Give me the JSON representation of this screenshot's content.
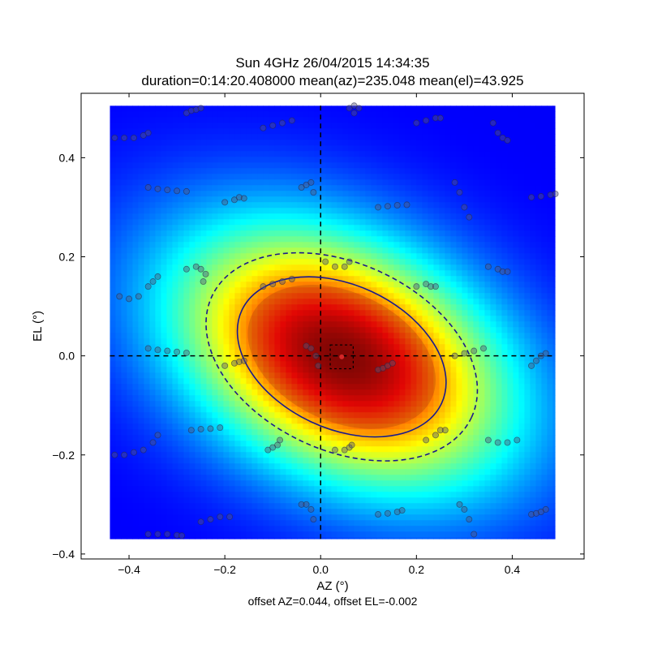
{
  "chart_data": {
    "type": "heatmap",
    "title_line1": "Sun 4GHz 26/04/2015 14:34:35",
    "title_line2": "duration=0:14:20.408000 mean(az)=235.048 mean(el)=43.925",
    "xlabel": "AZ (°)",
    "ylabel": "EL (°)",
    "footer": "offset AZ=0.044, offset EL=-0.002",
    "xlim": [
      -0.5,
      0.55
    ],
    "ylim": [
      -0.41,
      0.53
    ],
    "xticks": [
      -0.4,
      -0.2,
      0.0,
      0.2,
      0.4
    ],
    "xtick_labels": [
      "−0.4",
      "−0.2",
      "0.0",
      "0.2",
      "0.4"
    ],
    "yticks": [
      -0.4,
      -0.2,
      0.0,
      0.2,
      0.4
    ],
    "ytick_labels": [
      "−0.4",
      "−0.2",
      "0.0",
      "0.2",
      "0.4"
    ],
    "colormap": "jet",
    "heatmap_extent": {
      "az": [
        -0.44,
        0.49
      ],
      "el": [
        -0.37,
        0.505
      ]
    },
    "beam_model": {
      "center_az": 0.044,
      "center_el": -0.002,
      "semi_axis_az": 0.23,
      "semi_axis_el": 0.145,
      "tilt_deg": 25,
      "halfpower_contour_scale": 1.0,
      "outer_contour_scale": 1.3
    },
    "crosshair": {
      "az": 0.0,
      "el": 0.0,
      "style": "dashed"
    },
    "offset_marker": {
      "az": 0.044,
      "el": -0.002,
      "color": "#d62728",
      "box_halfsize": 0.024
    },
    "contour_color": "#1a1a8c",
    "scan_track_angles_deg": [
      -18,
      25,
      62,
      5,
      -40,
      10,
      30,
      -60,
      15,
      -25
    ],
    "scan_points": [
      [
        -0.43,
        0.44
      ],
      [
        -0.41,
        0.44
      ],
      [
        -0.39,
        0.44
      ],
      [
        -0.37,
        0.445
      ],
      [
        -0.36,
        0.45
      ],
      [
        -0.42,
        0.12
      ],
      [
        -0.4,
        0.115
      ],
      [
        -0.38,
        0.12
      ],
      [
        -0.36,
        0.14
      ],
      [
        -0.35,
        0.15
      ],
      [
        -0.34,
        0.16
      ],
      [
        -0.36,
        0.015
      ],
      [
        -0.34,
        0.012
      ],
      [
        -0.32,
        0.01
      ],
      [
        -0.3,
        0.008
      ],
      [
        -0.28,
        0.006
      ],
      [
        -0.43,
        -0.2
      ],
      [
        -0.41,
        -0.2
      ],
      [
        -0.39,
        -0.195
      ],
      [
        -0.37,
        -0.19
      ],
      [
        -0.35,
        -0.175
      ],
      [
        -0.34,
        -0.16
      ],
      [
        -0.36,
        -0.36
      ],
      [
        -0.34,
        -0.36
      ],
      [
        -0.32,
        -0.36
      ],
      [
        -0.3,
        -0.362
      ],
      [
        -0.29,
        -0.363
      ],
      [
        -0.36,
        0.34
      ],
      [
        -0.34,
        0.337
      ],
      [
        -0.32,
        0.335
      ],
      [
        -0.3,
        0.333
      ],
      [
        -0.28,
        0.332
      ],
      [
        -0.28,
        0.49
      ],
      [
        -0.27,
        0.495
      ],
      [
        -0.26,
        0.497
      ],
      [
        -0.25,
        0.5
      ],
      [
        -0.28,
        0.175
      ],
      [
        -0.26,
        0.18
      ],
      [
        -0.25,
        0.175
      ],
      [
        -0.24,
        0.165
      ],
      [
        -0.245,
        0.15
      ],
      [
        -0.27,
        -0.15
      ],
      [
        -0.25,
        -0.148
      ],
      [
        -0.23,
        -0.147
      ],
      [
        -0.21,
        -0.145
      ],
      [
        -0.25,
        -0.335
      ],
      [
        -0.23,
        -0.33
      ],
      [
        -0.21,
        -0.325
      ],
      [
        -0.19,
        -0.325
      ],
      [
        -0.2,
        0.31
      ],
      [
        -0.18,
        0.315
      ],
      [
        -0.17,
        0.32
      ],
      [
        -0.16,
        0.318
      ],
      [
        -0.2,
        -0.02
      ],
      [
        -0.18,
        -0.015
      ],
      [
        -0.17,
        -0.012
      ],
      [
        -0.16,
        -0.01
      ],
      [
        -0.12,
        0.46
      ],
      [
        -0.1,
        0.465
      ],
      [
        -0.08,
        0.47
      ],
      [
        -0.06,
        0.475
      ],
      [
        -0.12,
        0.14
      ],
      [
        -0.1,
        0.145
      ],
      [
        -0.08,
        0.15
      ],
      [
        -0.06,
        0.155
      ],
      [
        -0.11,
        -0.19
      ],
      [
        -0.1,
        -0.185
      ],
      [
        -0.09,
        -0.18
      ],
      [
        -0.085,
        -0.17
      ],
      [
        -0.04,
        0.34
      ],
      [
        -0.03,
        0.345
      ],
      [
        -0.02,
        0.35
      ],
      [
        -0.015,
        0.33
      ],
      [
        -0.03,
        0.02
      ],
      [
        -0.02,
        0.015
      ],
      [
        -0.01,
        0.0
      ],
      [
        -0.005,
        -0.02
      ],
      [
        -0.04,
        -0.3
      ],
      [
        -0.03,
        -0.3
      ],
      [
        -0.02,
        -0.31
      ],
      [
        -0.015,
        -0.33
      ],
      [
        0.01,
        0.19
      ],
      [
        0.03,
        0.18
      ],
      [
        0.05,
        0.18
      ],
      [
        0.06,
        0.19
      ],
      [
        0.03,
        -0.19
      ],
      [
        0.05,
        -0.19
      ],
      [
        0.06,
        -0.185
      ],
      [
        0.065,
        -0.18
      ],
      [
        0.06,
        0.5
      ],
      [
        0.07,
        0.505
      ],
      [
        0.08,
        0.5
      ],
      [
        0.07,
        0.49
      ],
      [
        0.12,
        -0.028
      ],
      [
        0.13,
        -0.025
      ],
      [
        0.14,
        -0.02
      ],
      [
        0.15,
        -0.015
      ],
      [
        0.12,
        0.3
      ],
      [
        0.14,
        0.302
      ],
      [
        0.16,
        0.304
      ],
      [
        0.18,
        0.305
      ],
      [
        0.12,
        -0.32
      ],
      [
        0.14,
        -0.318
      ],
      [
        0.16,
        -0.315
      ],
      [
        0.17,
        -0.312
      ],
      [
        0.2,
        0.47
      ],
      [
        0.22,
        0.475
      ],
      [
        0.24,
        0.48
      ],
      [
        0.25,
        0.48
      ],
      [
        0.2,
        0.14
      ],
      [
        0.22,
        0.145
      ],
      [
        0.23,
        0.14
      ],
      [
        0.24,
        0.14
      ],
      [
        0.22,
        -0.17
      ],
      [
        0.24,
        -0.16
      ],
      [
        0.25,
        -0.15
      ],
      [
        0.26,
        -0.15
      ],
      [
        0.28,
        0.35
      ],
      [
        0.29,
        0.33
      ],
      [
        0.3,
        0.3
      ],
      [
        0.31,
        0.28
      ],
      [
        0.28,
        0.0
      ],
      [
        0.3,
        0.005
      ],
      [
        0.32,
        0.01
      ],
      [
        0.34,
        0.015
      ],
      [
        0.29,
        -0.3
      ],
      [
        0.3,
        -0.31
      ],
      [
        0.31,
        -0.33
      ],
      [
        0.32,
        -0.36
      ],
      [
        0.36,
        0.47
      ],
      [
        0.37,
        0.45
      ],
      [
        0.38,
        0.44
      ],
      [
        0.39,
        0.435
      ],
      [
        0.35,
        0.18
      ],
      [
        0.37,
        0.175
      ],
      [
        0.38,
        0.17
      ],
      [
        0.39,
        0.17
      ],
      [
        0.35,
        -0.17
      ],
      [
        0.37,
        -0.175
      ],
      [
        0.39,
        -0.175
      ],
      [
        0.41,
        -0.17
      ],
      [
        0.44,
        0.32
      ],
      [
        0.46,
        0.322
      ],
      [
        0.48,
        0.325
      ],
      [
        0.49,
        0.327
      ],
      [
        0.44,
        -0.02
      ],
      [
        0.45,
        -0.01
      ],
      [
        0.46,
        0.0
      ],
      [
        0.47,
        0.005
      ],
      [
        0.44,
        -0.32
      ],
      [
        0.45,
        -0.318
      ],
      [
        0.46,
        -0.315
      ],
      [
        0.47,
        -0.31
      ]
    ]
  }
}
